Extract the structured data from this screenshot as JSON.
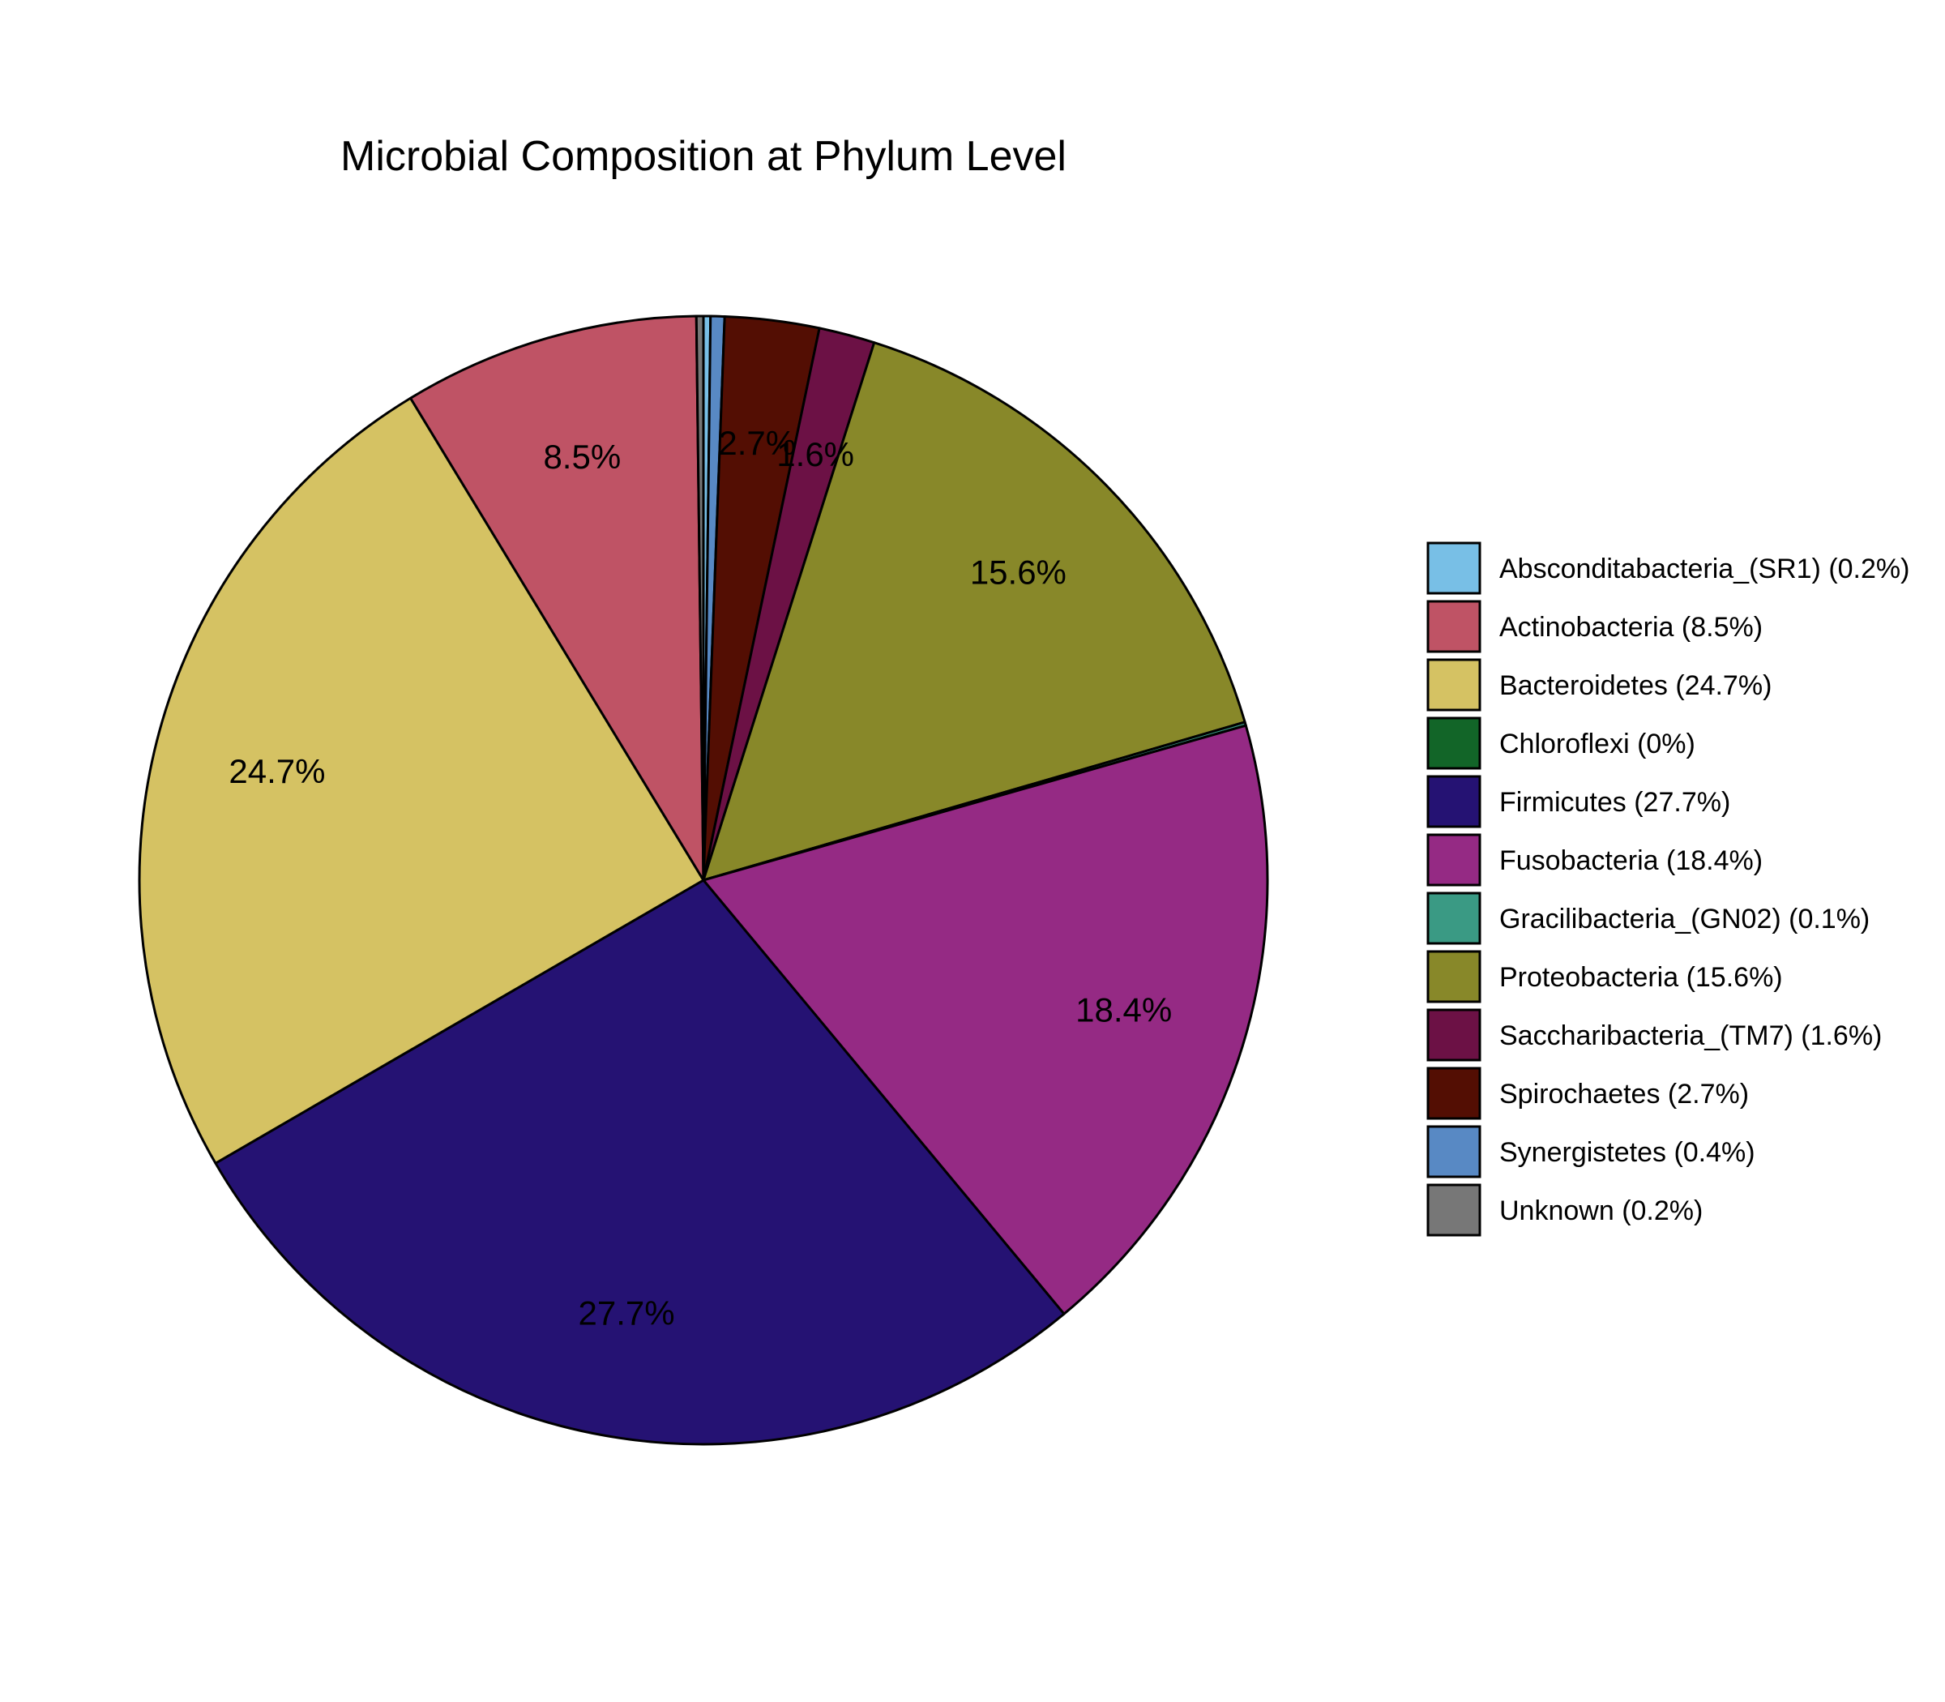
{
  "chart_data": {
    "type": "pie",
    "title": "Microbial Composition at Phylum Level",
    "start_angle_deg": 90,
    "direction": "clockwise",
    "slices": [
      {
        "name": "Absconditabacteria_(SR1)",
        "value": 0.2,
        "color": "#78BFE6",
        "label": "",
        "legend": "Absconditabacteria_(SR1) (0.2%)"
      },
      {
        "name": "Synergistetes",
        "value": 0.4,
        "color": "#5889C4",
        "label": "",
        "legend": "Synergistetes (0.4%)"
      },
      {
        "name": "Spirochaetes",
        "value": 2.7,
        "color": "#530E03",
        "label": "2.7%",
        "legend": "Spirochaetes (2.7%)"
      },
      {
        "name": "Saccharibacteria_(TM7)",
        "value": 1.6,
        "color": "#6C1145",
        "label": "1.6%",
        "legend": "Saccharibacteria_(TM7) (1.6%)"
      },
      {
        "name": "Proteobacteria",
        "value": 15.6,
        "color": "#888829",
        "label": "15.6%",
        "legend": "Proteobacteria (15.6%)"
      },
      {
        "name": "Gracilibacteria_(GN02)",
        "value": 0.1,
        "color": "#3A9A84",
        "label": "",
        "legend": "Gracilibacteria_(GN02) (0.1%)"
      },
      {
        "name": "Chloroflexi",
        "value": 0.0,
        "color": "#126528",
        "label": "",
        "legend": "Chloroflexi (0%)"
      },
      {
        "name": "Fusobacteria",
        "value": 18.4,
        "color": "#952A84",
        "label": "18.4%",
        "legend": "Fusobacteria (18.4%)"
      },
      {
        "name": "Firmicutes",
        "value": 27.7,
        "color": "#251273",
        "label": "27.7%",
        "legend": "Firmicutes (27.7%)"
      },
      {
        "name": "Bacteroidetes",
        "value": 24.7,
        "color": "#D5C263",
        "label": "24.7%",
        "legend": "Bacteroidetes (24.7%)"
      },
      {
        "name": "Actinobacteria",
        "value": 8.5,
        "color": "#BF5365",
        "label": "8.5%",
        "legend": "Actinobacteria (8.5%)"
      },
      {
        "name": "Unknown",
        "value": 0.2,
        "color": "#777777",
        "label": "",
        "legend": "Unknown (0.2%)"
      }
    ],
    "legend_order": [
      "Absconditabacteria_(SR1)",
      "Actinobacteria",
      "Bacteroidetes",
      "Chloroflexi",
      "Firmicutes",
      "Fusobacteria",
      "Gracilibacteria_(GN02)",
      "Proteobacteria",
      "Saccharibacteria_(TM7)",
      "Spirochaetes",
      "Synergistetes",
      "Unknown"
    ],
    "legend_position": "right"
  }
}
